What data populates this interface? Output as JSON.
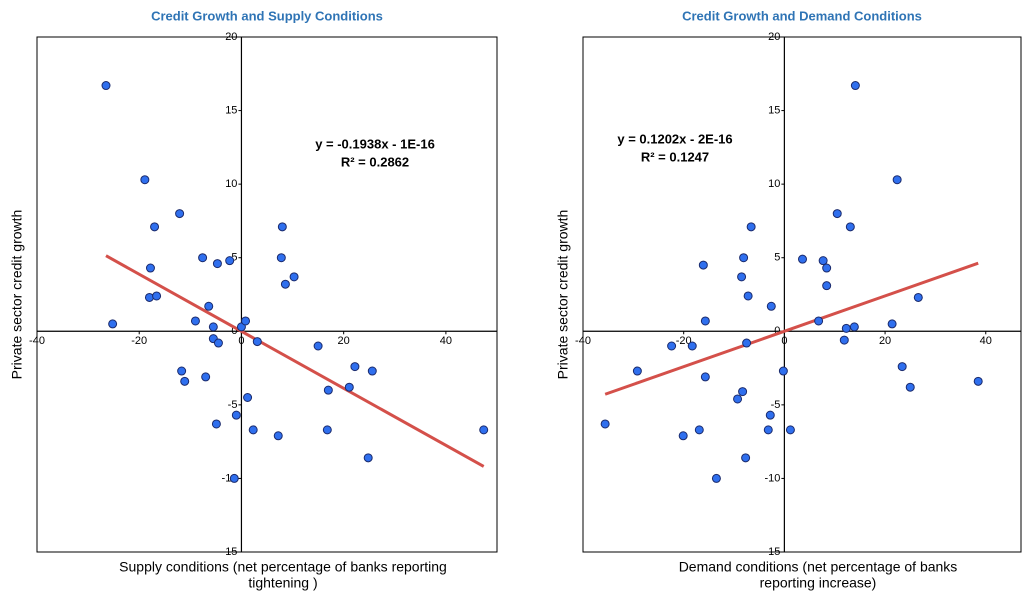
{
  "chart_data": [
    {
      "type": "scatter",
      "title": "Credit Growth and Supply Conditions",
      "xlabel": [
        "Supply conditions (net percentage of  banks reporting",
        "tightening )"
      ],
      "ylabel": "Private sector credit growth",
      "x": [
        -26.5,
        -18.9,
        -12.1,
        -17.0,
        -17.8,
        -18.0,
        -16.6,
        -25.2,
        -7.6,
        -4.7,
        -2.3,
        -6.4,
        -9.0,
        -5.5,
        -5.5,
        -4.5,
        0,
        0.8,
        3.1,
        7.8,
        8.0,
        10.3,
        8.6,
        -11.7,
        -11.1,
        -7.0,
        -4.9,
        -1.0,
        1.2,
        2.3,
        7.2,
        15.0,
        17.0,
        16.8,
        22.2,
        25.6,
        21.1,
        24.8,
        47.4,
        -1.4
      ],
      "y": [
        16.7,
        10.3,
        8.0,
        7.1,
        4.3,
        2.3,
        2.4,
        0.5,
        5.0,
        4.6,
        4.8,
        1.7,
        0.7,
        0.3,
        -0.5,
        -0.8,
        0.3,
        0.7,
        -0.7,
        5.0,
        7.1,
        3.7,
        3.2,
        -2.7,
        -3.4,
        -3.1,
        -6.3,
        -5.7,
        -4.5,
        -6.7,
        -7.1,
        -1.0,
        -4.0,
        -6.7,
        -2.4,
        -2.7,
        -3.8,
        -8.6,
        -6.7,
        -10.0
      ],
      "xlim": [
        -40,
        50
      ],
      "ylim": [
        -15,
        20
      ],
      "xticks": [
        -40,
        -20,
        0,
        20,
        40
      ],
      "yticks": [
        -15,
        -10,
        -5,
        0,
        5,
        10,
        15,
        20
      ],
      "color": "#2f6fee",
      "trendline": {
        "color": "#d4504a",
        "slope": -0.1938,
        "intercept": -1e-16,
        "equation": "y = -0.1938x - 1E-16",
        "r2": "R² = 0.2862"
      }
    },
    {
      "type": "scatter",
      "title": "Credit Growth and Demand Conditions",
      "xlabel": [
        "Demand conditions (net percentage of banks",
        "reporting increase)"
      ],
      "ylabel": "Private sector credit growth",
      "x": [
        14.1,
        22.4,
        10.5,
        13.1,
        -6.6,
        -8.1,
        -8.5,
        -7.2,
        -16.1,
        -15.7,
        3.6,
        7.7,
        8.4,
        8.4,
        -2.6,
        6.8,
        12.3,
        13.9,
        21.4,
        26.6,
        11.9,
        -7.5,
        -18.3,
        -22.4,
        -29.2,
        -15.7,
        -0.2,
        23.4,
        25.0,
        38.5,
        -8.3,
        -9.3,
        -2.8,
        -3.2,
        1.2,
        -16.9,
        -20.1,
        -35.6,
        -7.7,
        -13.5
      ],
      "y": [
        16.7,
        10.3,
        8.0,
        7.1,
        7.1,
        5.0,
        3.7,
        2.4,
        4.5,
        0.7,
        4.9,
        4.8,
        4.3,
        3.1,
        1.7,
        0.7,
        0.2,
        0.3,
        0.5,
        2.3,
        -0.6,
        -0.8,
        -1.0,
        -1.0,
        -2.7,
        -3.1,
        -2.7,
        -2.4,
        -3.8,
        -3.4,
        -4.1,
        -4.6,
        -5.7,
        -6.7,
        -6.7,
        -6.7,
        -7.1,
        -6.3,
        -8.6,
        -10.0
      ],
      "xlim": [
        -40,
        47
      ],
      "ylim": [
        -15,
        20
      ],
      "xticks": [
        -40,
        -20,
        0,
        20,
        40
      ],
      "yticks": [
        -15,
        -10,
        -5,
        0,
        5,
        10,
        15,
        20
      ],
      "color": "#2f6fee",
      "trendline": {
        "color": "#d4504a",
        "slope": 0.1202,
        "intercept": -2e-16,
        "equation": "y = 0.1202x - 2E-16",
        "r2": "R² = 0.1247"
      }
    }
  ]
}
